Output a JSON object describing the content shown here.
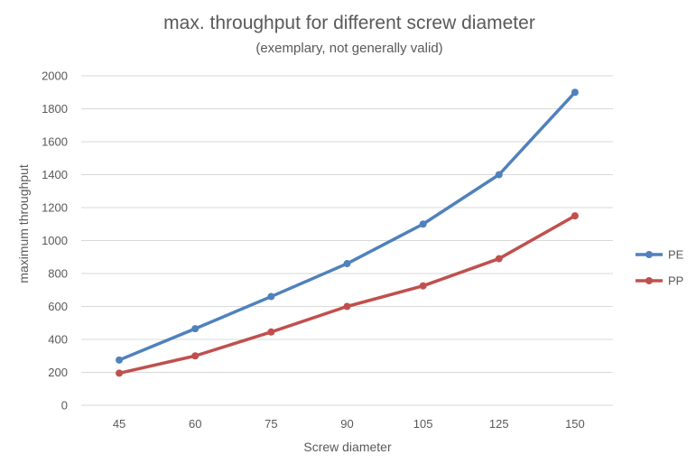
{
  "chart_data": {
    "type": "line",
    "title": "max. throughput for different screw diameter",
    "subtitle": "(exemplary, not generally valid)",
    "xlabel": "Screw diameter",
    "ylabel": "maximum throughput",
    "categories": [
      "45",
      "60",
      "75",
      "90",
      "105",
      "125",
      "150"
    ],
    "ylim": [
      0,
      2000
    ],
    "yticks": [
      0,
      200,
      400,
      600,
      800,
      1000,
      1200,
      1400,
      1600,
      1800,
      2000
    ],
    "grid": true,
    "legend_position": "right",
    "series": [
      {
        "name": "PE",
        "color": "#4f81bd",
        "values": [
          275,
          465,
          660,
          860,
          1100,
          1400,
          1900
        ]
      },
      {
        "name": "PP",
        "color": "#c0504d",
        "values": [
          195,
          300,
          445,
          600,
          725,
          890,
          1150
        ]
      }
    ]
  }
}
